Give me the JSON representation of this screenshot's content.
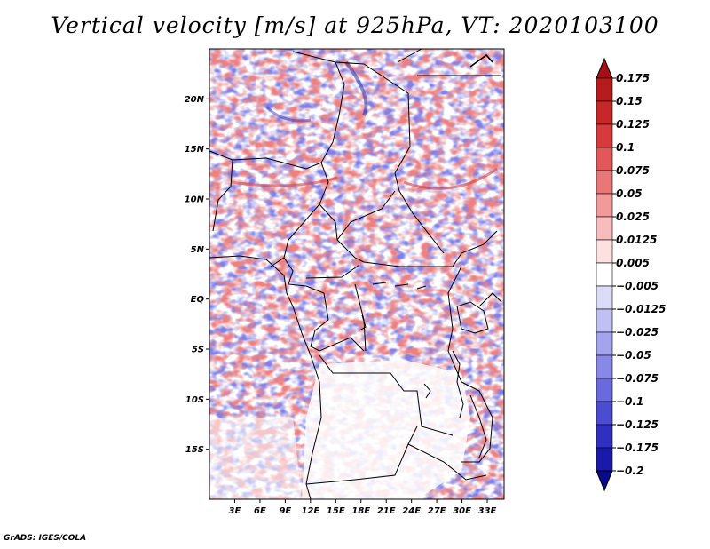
{
  "title": "Vertical velocity [m/s] at 925hPa, VT: 2020103100",
  "map": {
    "lon_range": [
      0,
      35
    ],
    "lat_range": [
      -20,
      25
    ],
    "lat_ticks": [
      {
        "value": 20,
        "label": "20N"
      },
      {
        "value": 15,
        "label": "15N"
      },
      {
        "value": 10,
        "label": "10N"
      },
      {
        "value": 5,
        "label": "5N"
      },
      {
        "value": 0,
        "label": "EQ"
      },
      {
        "value": -5,
        "label": "5S"
      },
      {
        "value": -10,
        "label": "10S"
      },
      {
        "value": -15,
        "label": "15S"
      }
    ],
    "lon_ticks": [
      {
        "value": 3,
        "label": "3E"
      },
      {
        "value": 6,
        "label": "6E"
      },
      {
        "value": 9,
        "label": "9E"
      },
      {
        "value": 12,
        "label": "12E"
      },
      {
        "value": 15,
        "label": "15E"
      },
      {
        "value": 18,
        "label": "18E"
      },
      {
        "value": 21,
        "label": "21E"
      },
      {
        "value": 24,
        "label": "24E"
      },
      {
        "value": 27,
        "label": "27E"
      },
      {
        "value": 30,
        "label": "30E"
      },
      {
        "value": 33,
        "label": "33E"
      }
    ]
  },
  "colorbar": {
    "labels": [
      "0.175",
      "0.15",
      "0.125",
      "0.1",
      "0.075",
      "0.05",
      "0.025",
      "0.0125",
      "0.005",
      "−0.005",
      "−0.0125",
      "−0.025",
      "−0.05",
      "−0.075",
      "−0.1",
      "−0.125",
      "−0.175",
      "−0.2"
    ],
    "colors": [
      "#a50f15",
      "#b71c1c",
      "#c62828",
      "#d63a3a",
      "#e05858",
      "#e87878",
      "#f29a9a",
      "#f8bcbc",
      "#fde0e0",
      "#ffffff",
      "#dcdcf8",
      "#c0c0f4",
      "#a4a4ee",
      "#8888e6",
      "#6a6adc",
      "#4c4cd0",
      "#3030c0",
      "#1a1aa8",
      "#0a0a8c"
    ]
  },
  "credit": "GrADS: IGES/COLA"
}
